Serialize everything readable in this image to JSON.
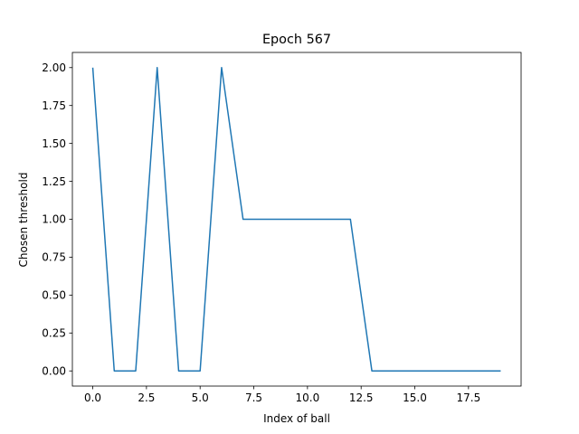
{
  "chart_data": {
    "type": "line",
    "title": "Epoch 567",
    "xlabel": "Index of ball",
    "ylabel": "Chosen threshold",
    "xlim": [
      -0.95,
      19.95
    ],
    "ylim": [
      -0.1,
      2.1
    ],
    "xticks": [
      0.0,
      2.5,
      5.0,
      7.5,
      10.0,
      12.5,
      15.0,
      17.5
    ],
    "xtick_labels": [
      "0.0",
      "2.5",
      "5.0",
      "7.5",
      "10.0",
      "12.5",
      "15.0",
      "17.5"
    ],
    "yticks": [
      0.0,
      0.25,
      0.5,
      0.75,
      1.0,
      1.25,
      1.5,
      1.75,
      2.0
    ],
    "ytick_labels": [
      "0.00",
      "0.25",
      "0.50",
      "0.75",
      "1.00",
      "1.25",
      "1.50",
      "1.75",
      "2.00"
    ],
    "grid": false,
    "series": [
      {
        "x": [
          0,
          1,
          2,
          3,
          4,
          5,
          6,
          7,
          8,
          9,
          10,
          11,
          12,
          13,
          14,
          15,
          16,
          17,
          18,
          19
        ],
        "y": [
          2,
          0,
          0,
          2,
          0,
          0,
          2,
          1,
          1,
          1,
          1,
          1,
          1,
          0,
          0,
          0,
          0,
          0,
          0,
          0
        ],
        "color": "#1f77b4"
      }
    ]
  }
}
